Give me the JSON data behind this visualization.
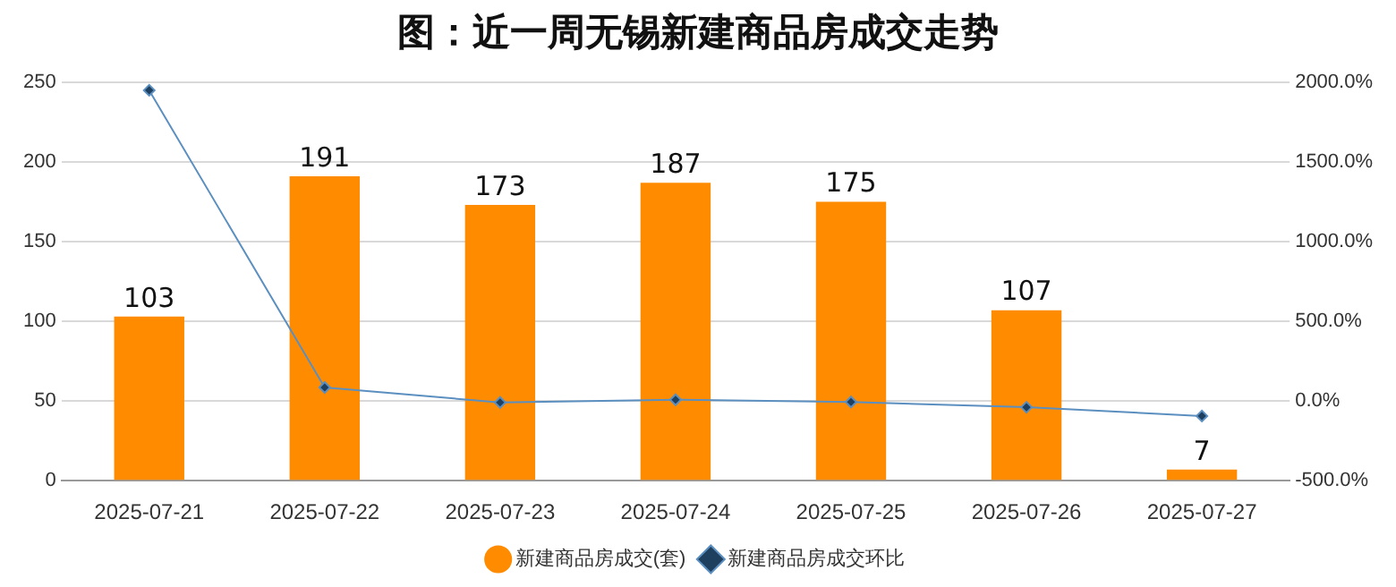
{
  "chart_data": {
    "type": "bar",
    "title": "图：近一周无锡新建商品房成交走势",
    "categories": [
      "2025-07-21",
      "2025-07-22",
      "2025-07-23",
      "2025-07-24",
      "2025-07-25",
      "2025-07-26",
      "2025-07-27"
    ],
    "series": [
      {
        "name": "新建商品房成交(套)",
        "color": "#ff8c00",
        "values": [
          103,
          191,
          173,
          187,
          175,
          107,
          7
        ],
        "value_labels": [
          "103",
          "191",
          "173",
          "187",
          "175",
          "107",
          "7"
        ]
      },
      {
        "name": "新建商品房成交环比",
        "type": "line",
        "axis": "y2",
        "color": "#5b8fc0",
        "marker": "diamond",
        "values": [
          1950,
          85,
          -9,
          8,
          -6,
          -39,
          -94
        ]
      }
    ],
    "ylim": [
      0,
      250
    ],
    "yticks": [
      0,
      50,
      100,
      150,
      200,
      250
    ],
    "y2lim": [
      -500,
      2000
    ],
    "y2ticks": [
      {
        "value": -500,
        "label": "-500.0%"
      },
      {
        "value": 0,
        "label": "0.0%"
      },
      {
        "value": 500,
        "label": "500.0%"
      },
      {
        "value": 1000,
        "label": "1000.0%"
      },
      {
        "value": 1500,
        "label": "1500.0%"
      },
      {
        "value": 2000,
        "label": "2000.0%"
      }
    ],
    "grid": "y",
    "legend": "bottom"
  }
}
